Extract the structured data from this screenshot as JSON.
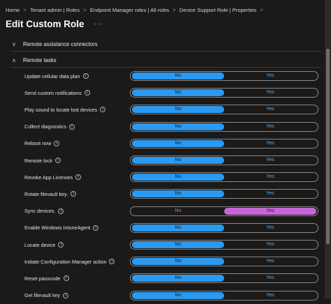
{
  "breadcrumb": [
    {
      "label": "Home"
    },
    {
      "label": "Tenant admin | Roles"
    },
    {
      "label": "Endpoint Manager roles | All roles"
    },
    {
      "label": "Device Support Role | Properties"
    }
  ],
  "breadcrumb_separator": ">",
  "title": "Edit Custom Role",
  "more_glyph": "···",
  "info_glyph": "i",
  "sections": {
    "connectors": {
      "label": "Remote assistance connectors",
      "chevron": "∨"
    },
    "remote_tasks": {
      "label": "Remote tasks",
      "chevron": "∧"
    }
  },
  "toggle_options": {
    "no": "No",
    "yes": "Yes"
  },
  "rows": [
    {
      "label": "Update cellular data plan",
      "value": "No"
    },
    {
      "label": "Send custom notifications",
      "value": "No"
    },
    {
      "label": "Play sound to locate lost devices",
      "value": "No"
    },
    {
      "label": "Collect diagnostics",
      "value": "No"
    },
    {
      "label": "Reboot now",
      "value": "No"
    },
    {
      "label": "Remote lock",
      "value": "No"
    },
    {
      "label": "Revoke App Licenses",
      "value": "No"
    },
    {
      "label": "Rotate filevault key.",
      "value": "No"
    },
    {
      "label": "Sync devices.",
      "value": "Yes"
    },
    {
      "label": "Enable Windows IntuneAgent",
      "value": "No"
    },
    {
      "label": "Locate device",
      "value": "No"
    },
    {
      "label": "Initiate Configuration Manager action",
      "value": "No"
    },
    {
      "label": "Reset passcode",
      "value": "No"
    },
    {
      "label": "Get filevault key",
      "value": "No"
    }
  ],
  "colors": {
    "no_selected": "#2b99f0",
    "yes_selected": "#c667d6",
    "background": "#1b1a19"
  }
}
